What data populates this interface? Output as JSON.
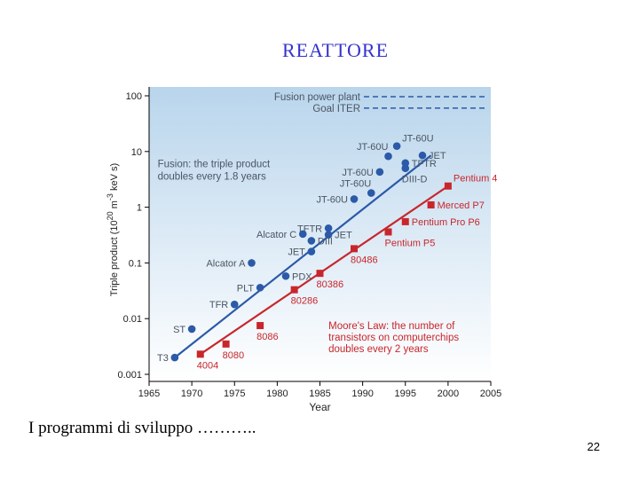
{
  "slide": {
    "title": "REATTORE",
    "caption": "I programmi di sviluppo ………..",
    "page_number": "22"
  },
  "colors": {
    "title": "#3333cc",
    "fusion_series": "#2b5aa8",
    "moore_series": "#c8262b",
    "plot_bg_top": "#b9d5ec",
    "plot_bg_bottom": "#ffffff",
    "label_text": "#4a5563"
  },
  "chart_data": {
    "type": "scatter",
    "title": "",
    "xlabel": "Year",
    "ylabel": "Triple product (10^20 m^-3 keV s)",
    "ylabel_parts": {
      "main": "Triple product (10",
      "exp": "20",
      "unit_pre": " m",
      "unit_exp": "-3",
      "unit_post": " keV s)"
    },
    "x_ticks": [
      1965,
      1970,
      1975,
      1980,
      1985,
      1990,
      1995,
      2000,
      2005
    ],
    "y_ticks": [
      0.001,
      0.01,
      0.1,
      1,
      10,
      100
    ],
    "y_tick_labels": [
      "0.001",
      "0.01",
      "0.1",
      "1",
      "10",
      "100"
    ],
    "xlim": [
      1965,
      2005
    ],
    "ylim": [
      0.001,
      100
    ],
    "yscale": "log",
    "reference_lines": [
      {
        "label": "Fusion power plant",
        "y": 100
      },
      {
        "label": "Goal ITER",
        "y": 60
      }
    ],
    "annotations": [
      {
        "text": "Fusion: the triple product",
        "x": 1966,
        "y": 5.2
      },
      {
        "text": "doubles every 1.8 years",
        "x": 1966,
        "y": 3.1
      },
      {
        "text": "Moore's Law: the number of",
        "x": 1986,
        "y": 0.0065
      },
      {
        "text": "transistors on computerchips",
        "x": 1986,
        "y": 0.004
      },
      {
        "text": "doubles every 2 years",
        "x": 1986,
        "y": 0.0025
      }
    ],
    "series": [
      {
        "name": "Fusion",
        "marker": "circle",
        "trend": {
          "x": [
            1968,
            1998
          ],
          "y": [
            0.002,
            8.5
          ]
        },
        "points": [
          {
            "label": "T3",
            "x": 1968,
            "y": 0.002,
            "label_side": "left"
          },
          {
            "label": "ST",
            "x": 1970,
            "y": 0.0065,
            "label_side": "left"
          },
          {
            "label": "TFR",
            "x": 1975,
            "y": 0.018,
            "label_side": "left"
          },
          {
            "label": "PLT",
            "x": 1978,
            "y": 0.036,
            "label_side": "left"
          },
          {
            "label": "Alcator A",
            "x": 1977,
            "y": 0.1,
            "label_side": "left"
          },
          {
            "label": "PDX",
            "x": 1981,
            "y": 0.058,
            "label_side": "right"
          },
          {
            "label": "Alcator C",
            "x": 1983,
            "y": 0.33,
            "label_side": "left"
          },
          {
            "label": "JET",
            "x": 1984,
            "y": 0.16,
            "label_side": "left"
          },
          {
            "label": "DIII",
            "x": 1984,
            "y": 0.25,
            "label_side": "right"
          },
          {
            "label": "TFTR",
            "x": 1986,
            "y": 0.42,
            "label_side": "left"
          },
          {
            "label": "JET",
            "x": 1986,
            "y": 0.32,
            "label_side": "right"
          },
          {
            "label": "JT-60U",
            "x": 1989,
            "y": 1.4,
            "label_side": "left"
          },
          {
            "label": "JT-60U",
            "x": 1991,
            "y": 1.8,
            "label_side": "above"
          },
          {
            "label": "JT-60U",
            "x": 1992,
            "y": 4.3,
            "label_side": "left"
          },
          {
            "label": "JT-60U",
            "x": 1993,
            "y": 8.2,
            "label_side": "above"
          },
          {
            "label": "JT-60U",
            "x": 1994,
            "y": 12.5,
            "label_side": "aboveright"
          },
          {
            "label": "JET",
            "x": 1997,
            "y": 8.5,
            "label_side": "right"
          },
          {
            "label": "TFTR",
            "x": 1995,
            "y": 6.2,
            "label_side": "right"
          },
          {
            "label": "DIII-D",
            "x": 1995,
            "y": 5.0,
            "label_side": "below"
          }
        ]
      },
      {
        "name": "Moore's Law",
        "marker": "square",
        "trend": {
          "x": [
            1971,
            2000
          ],
          "y": [
            0.0023,
            2.4
          ]
        },
        "points": [
          {
            "label": "4004",
            "x": 1971,
            "y": 0.0023,
            "label_side": "below"
          },
          {
            "label": "8080",
            "x": 1974,
            "y": 0.0035,
            "label_side": "below"
          },
          {
            "label": "8086",
            "x": 1978,
            "y": 0.0075,
            "label_side": "below"
          },
          {
            "label": "80286",
            "x": 1982,
            "y": 0.033,
            "label_side": "below"
          },
          {
            "label": "80386",
            "x": 1985,
            "y": 0.065,
            "label_side": "below"
          },
          {
            "label": "80486",
            "x": 1989,
            "y": 0.18,
            "label_side": "below"
          },
          {
            "label": "Pentium P5",
            "x": 1993,
            "y": 0.36,
            "label_side": "below"
          },
          {
            "label": "Pentium Pro P6",
            "x": 1995,
            "y": 0.55,
            "label_side": "right"
          },
          {
            "label": "Merced P7",
            "x": 1998,
            "y": 1.1,
            "label_side": "right"
          },
          {
            "label": "Pentium 4",
            "x": 2000,
            "y": 2.4,
            "label_side": "aboveright"
          }
        ]
      }
    ]
  }
}
